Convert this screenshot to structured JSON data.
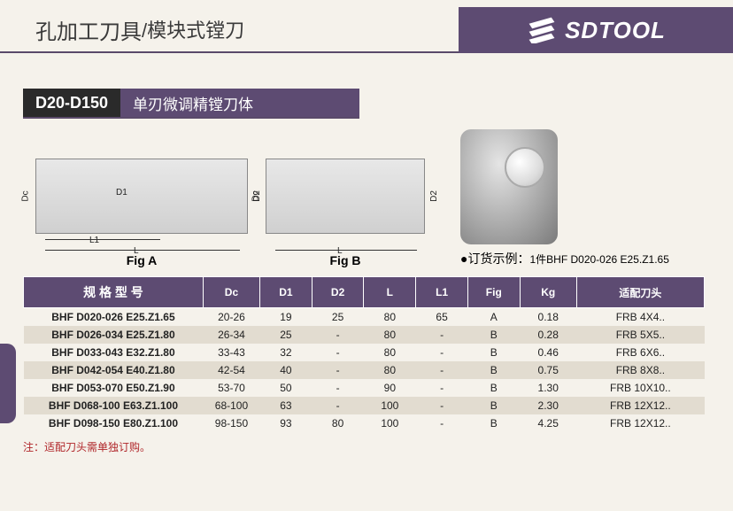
{
  "header": {
    "title_cn": "孔加工刀具",
    "title_sub": "/模块式镗刀",
    "brand": "SDTOOL"
  },
  "section": {
    "code": "D20-D150",
    "name": "单刃微调精镗刀体"
  },
  "figures": {
    "a_caption": "Fig A",
    "b_caption": "Fig B",
    "dims": {
      "dc": "Dc",
      "d1": "D1",
      "d2": "D2",
      "l": "L",
      "l1": "L1"
    },
    "order_note_label": "●订货示例：",
    "order_note_value": "1件BHF D020-026 E25.Z1.65"
  },
  "table": {
    "columns": [
      "规 格 型 号",
      "Dc",
      "D1",
      "D2",
      "L",
      "L1",
      "Fig",
      "Kg",
      "适配刀头"
    ],
    "rows": [
      [
        "BHF D020-026 E25.Z1.65",
        "20-26",
        "19",
        "25",
        "80",
        "65",
        "A",
        "0.18",
        "FRB 4X4.."
      ],
      [
        "BHF D026-034 E25.Z1.80",
        "26-34",
        "25",
        "-",
        "80",
        "-",
        "B",
        "0.28",
        "FRB 5X5.."
      ],
      [
        "BHF D033-043 E32.Z1.80",
        "33-43",
        "32",
        "-",
        "80",
        "-",
        "B",
        "0.46",
        "FRB 6X6.."
      ],
      [
        "BHF D042-054 E40.Z1.80",
        "42-54",
        "40",
        "-",
        "80",
        "-",
        "B",
        "0.75",
        "FRB 8X8.."
      ],
      [
        "BHF D053-070 E50.Z1.90",
        "53-70",
        "50",
        "-",
        "90",
        "-",
        "B",
        "1.30",
        "FRB 10X10.."
      ],
      [
        "BHF D068-100 E63.Z1.100",
        "68-100",
        "63",
        "-",
        "100",
        "-",
        "B",
        "2.30",
        "FRB 12X12.."
      ],
      [
        "BHF D098-150 E80.Z1.100",
        "98-150",
        "93",
        "80",
        "100",
        "-",
        "B",
        "4.25",
        "FRB 12X12.."
      ]
    ],
    "col_widths": [
      "190px",
      "60px",
      "55px",
      "55px",
      "55px",
      "55px",
      "55px",
      "60px",
      "135px"
    ]
  },
  "footer_note": "注：适配刀头需单独订购。",
  "colors": {
    "purple": "#5d4b72",
    "dark": "#2a2a2a",
    "bg": "#f5f2eb",
    "row_alt": "#e2dcd0",
    "note_red": "#b0262a"
  }
}
